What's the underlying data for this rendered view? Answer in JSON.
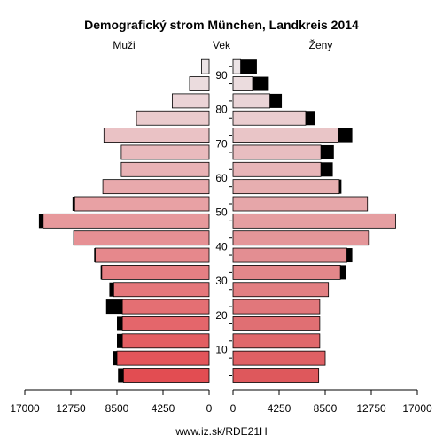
{
  "chart_data": {
    "type": "bar",
    "orientation": "horizontal-population-pyramid",
    "title": "Demografický strom München, Landkreis 2014",
    "left_label": "Muži",
    "center_label": "Vek",
    "right_label": "Ženy",
    "footer": "www.iz.sk/RDE21H",
    "x_ticks_left": [
      "17000",
      "12750",
      "8500",
      "4250",
      "0"
    ],
    "x_ticks_right": [
      "0",
      "4250",
      "8500",
      "12750",
      "17000"
    ],
    "xlim": [
      0,
      17000
    ],
    "age_ticks": [
      "10",
      "20",
      "30",
      "40",
      "50",
      "60",
      "70",
      "80",
      "90"
    ],
    "age_groups": [
      "0-4",
      "5-9",
      "10-14",
      "15-19",
      "20-24",
      "25-29",
      "30-34",
      "35-39",
      "40-44",
      "45-49",
      "50-54",
      "55-59",
      "60-64",
      "65-69",
      "70-74",
      "75-79",
      "80-84",
      "85-89",
      "90+"
    ],
    "series": [
      {
        "name": "Muži",
        "values": [
          7900,
          8500,
          8000,
          8000,
          8000,
          8800,
          9900,
          10500,
          12500,
          15300,
          12400,
          9800,
          8100,
          8100,
          9700,
          6700,
          3400,
          1800,
          700
        ],
        "excess": [
          500,
          400,
          500,
          500,
          1500,
          400,
          100,
          100,
          0,
          400,
          200,
          0,
          0,
          0,
          0,
          0,
          0,
          0,
          0
        ]
      },
      {
        "name": "Ženy",
        "values": [
          7900,
          8500,
          8000,
          8000,
          8000,
          8800,
          9900,
          10500,
          12500,
          15000,
          12400,
          9800,
          8100,
          8100,
          9700,
          6700,
          3400,
          1800,
          700
        ],
        "excess": [
          0,
          0,
          0,
          0,
          0,
          0,
          500,
          500,
          100,
          0,
          0,
          200,
          1100,
          1200,
          1300,
          900,
          1100,
          1500,
          1500
        ]
      }
    ],
    "colors": {
      "excess": "#000000",
      "bar_stroke": "#000000",
      "axis": "#000000"
    }
  }
}
